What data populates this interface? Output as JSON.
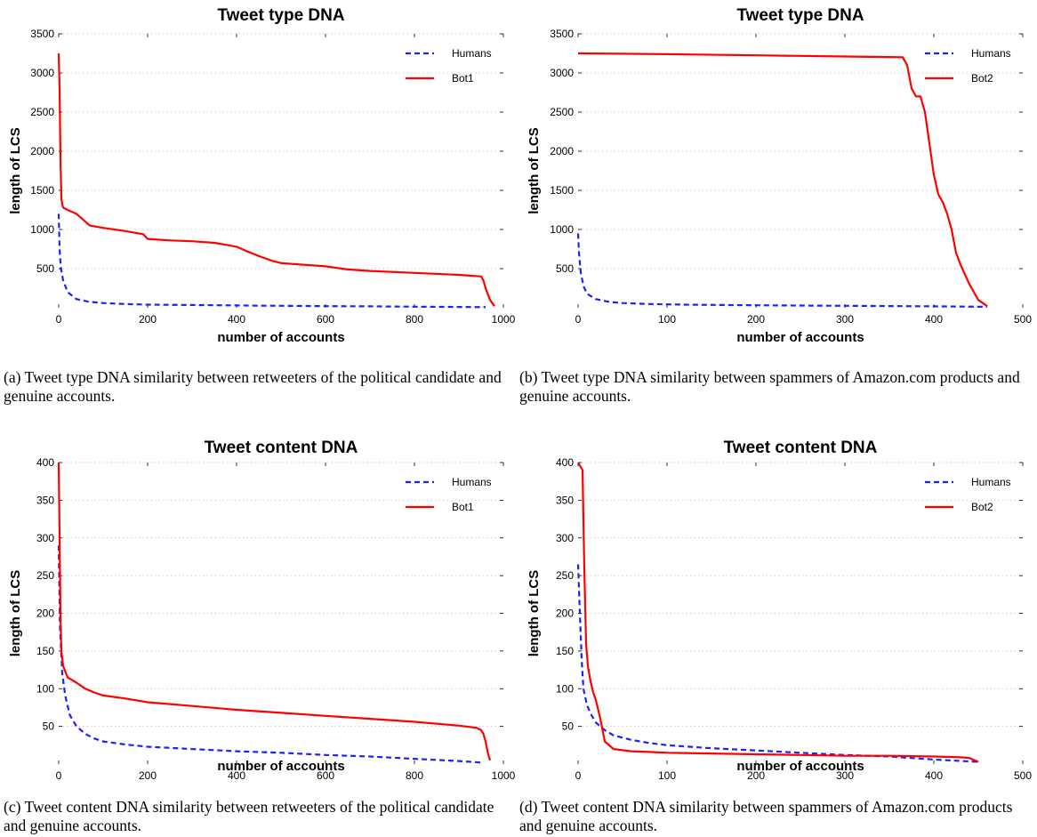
{
  "chart_data": [
    {
      "id": "a",
      "type": "line",
      "title": "Tweet type DNA",
      "xlabel": "number of accounts",
      "ylabel": "length of LCS",
      "xlim": [
        0,
        1000
      ],
      "ylim": [
        0,
        3500
      ],
      "xticks": [
        0,
        200,
        400,
        600,
        800,
        1000
      ],
      "yticks": [
        500,
        1000,
        1500,
        2000,
        2500,
        3000,
        3500
      ],
      "grid": "horizontal dotted",
      "legend": "top-right",
      "series": [
        {
          "name": "Humans",
          "color": "#1f1fff",
          "style": "dashed",
          "x": [
            0,
            2,
            5,
            10,
            20,
            40,
            70,
            100,
            150,
            200,
            300,
            400,
            500,
            600,
            700,
            800,
            900,
            960
          ],
          "y": [
            1200,
            750,
            500,
            350,
            200,
            110,
            75,
            60,
            48,
            40,
            35,
            30,
            25,
            20,
            18,
            14,
            10,
            8
          ]
        },
        {
          "name": "Bot1",
          "color": "#ff0000",
          "style": "solid",
          "x": [
            0,
            2,
            4,
            6,
            8,
            10,
            20,
            40,
            60,
            70,
            100,
            150,
            190,
            200,
            250,
            300,
            350,
            380,
            400,
            420,
            450,
            480,
            500,
            550,
            600,
            650,
            700,
            800,
            900,
            950,
            955,
            960,
            970,
            980
          ],
          "y": [
            3250,
            2800,
            1900,
            1400,
            1320,
            1280,
            1250,
            1200,
            1100,
            1050,
            1020,
            980,
            940,
            880,
            860,
            850,
            830,
            800,
            780,
            730,
            660,
            600,
            570,
            550,
            530,
            490,
            470,
            445,
            420,
            400,
            350,
            250,
            100,
            20
          ]
        }
      ]
    },
    {
      "id": "b",
      "type": "line",
      "title": "Tweet type DNA",
      "xlabel": "number of accounts",
      "ylabel": "length of LCS",
      "xlim": [
        0,
        500
      ],
      "ylim": [
        0,
        3500
      ],
      "xticks": [
        0,
        100,
        200,
        300,
        400,
        500
      ],
      "yticks": [
        500,
        1000,
        1500,
        2000,
        2500,
        3000,
        3500
      ],
      "grid": "horizontal dotted",
      "legend": "top-right",
      "series": [
        {
          "name": "Humans",
          "color": "#1f1fff",
          "style": "dashed",
          "x": [
            0,
            1,
            3,
            6,
            10,
            20,
            35,
            50,
            80,
            120,
            200,
            300,
            400,
            460
          ],
          "y": [
            950,
            700,
            450,
            280,
            180,
            110,
            75,
            60,
            48,
            40,
            32,
            25,
            18,
            12
          ]
        },
        {
          "name": "Bot2",
          "color": "#ff0000",
          "style": "solid",
          "x": [
            0,
            100,
            200,
            300,
            365,
            370,
            375,
            380,
            385,
            390,
            395,
            400,
            405,
            410,
            415,
            420,
            425,
            430,
            440,
            450,
            460
          ],
          "y": [
            3250,
            3240,
            3225,
            3210,
            3200,
            3100,
            2800,
            2700,
            2700,
            2500,
            2100,
            1700,
            1450,
            1350,
            1200,
            1000,
            700,
            550,
            300,
            100,
            20
          ]
        }
      ]
    },
    {
      "id": "c",
      "type": "line",
      "title": "Tweet content DNA",
      "xlabel": "number of accounts",
      "ylabel": "length of LCS",
      "xlim": [
        0,
        1000
      ],
      "ylim": [
        0,
        400
      ],
      "xticks": [
        0,
        200,
        400,
        600,
        800,
        1000
      ],
      "yticks": [
        50,
        100,
        150,
        200,
        250,
        300,
        350,
        400
      ],
      "grid": "horizontal dotted",
      "legend": "top-right",
      "series": [
        {
          "name": "Humans",
          "color": "#1f1fff",
          "style": "dashed",
          "x": [
            0,
            3,
            8,
            15,
            25,
            40,
            60,
            80,
            100,
            150,
            200,
            300,
            400,
            500,
            600,
            700,
            800,
            900,
            950
          ],
          "y": [
            290,
            180,
            120,
            90,
            65,
            50,
            40,
            34,
            30,
            26,
            23,
            20,
            17,
            15,
            12,
            10,
            7,
            4,
            2
          ]
        },
        {
          "name": "Bot1",
          "color": "#ff0000",
          "style": "solid",
          "x": [
            0,
            2,
            4,
            6,
            10,
            20,
            40,
            60,
            80,
            100,
            150,
            200,
            300,
            400,
            500,
            600,
            700,
            800,
            900,
            940,
            950,
            955,
            960,
            965,
            970
          ],
          "y": [
            400,
            300,
            200,
            150,
            130,
            115,
            108,
            100,
            95,
            91,
            87,
            82,
            77,
            72,
            68,
            64,
            60,
            56,
            51,
            48,
            45,
            40,
            30,
            15,
            5
          ]
        }
      ]
    },
    {
      "id": "d",
      "type": "line",
      "title": "Tweet content DNA",
      "xlabel": "number of accounts",
      "ylabel": "length of LCS",
      "xlim": [
        0,
        500
      ],
      "ylim": [
        0,
        400
      ],
      "xticks": [
        0,
        100,
        200,
        300,
        400,
        500
      ],
      "yticks": [
        50,
        100,
        150,
        200,
        250,
        300,
        350,
        400
      ],
      "grid": "horizontal dotted",
      "legend": "top-right",
      "series": [
        {
          "name": "Humans",
          "color": "#1f1fff",
          "style": "dashed",
          "x": [
            0,
            2,
            4,
            6,
            10,
            15,
            20,
            30,
            40,
            60,
            80,
            100,
            150,
            200,
            250,
            300,
            350,
            400,
            450
          ],
          "y": [
            265,
            200,
            140,
            100,
            78,
            65,
            55,
            45,
            38,
            32,
            28,
            25,
            21,
            18,
            15,
            12,
            10,
            6,
            3
          ]
        },
        {
          "name": "Bot2",
          "color": "#ff0000",
          "style": "solid",
          "x": [
            0,
            5,
            7,
            9,
            11,
            14,
            17,
            20,
            22,
            25,
            30,
            40,
            60,
            80,
            100,
            150,
            200,
            250,
            300,
            350,
            400,
            430,
            440,
            450
          ],
          "y": [
            400,
            390,
            260,
            160,
            130,
            110,
            95,
            85,
            75,
            60,
            30,
            20,
            17,
            16,
            15,
            14,
            13,
            12,
            11,
            11,
            10,
            9,
            8,
            3
          ]
        }
      ]
    }
  ],
  "captions": [
    {
      "id": "a",
      "text": "(a) Tweet type DNA similarity between retweeters of the political candidate and genuine accounts."
    },
    {
      "id": "b",
      "text": "(b) Tweet type DNA similarity between spammers of Amazon.com products and genuine accounts."
    },
    {
      "id": "c",
      "text": "(c) Tweet content DNA similarity between retweeters of the political candidate and genuine accounts."
    },
    {
      "id": "d",
      "text": "(d) Tweet content DNA similarity between spammers of Amazon.com products and genuine accounts."
    }
  ]
}
